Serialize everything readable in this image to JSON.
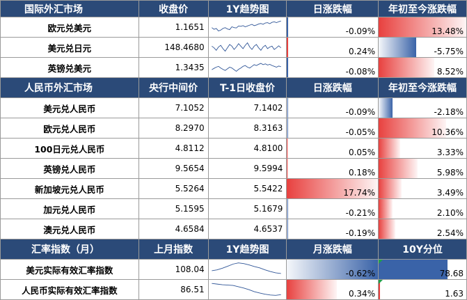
{
  "colors": {
    "header_bg": "#2b4a78",
    "pos": "#e8413f",
    "neg": "#3a63a8"
  },
  "section_fx": {
    "headers": [
      "国际外汇市场",
      "收盘价",
      "1Y趋势图",
      "日涨跌幅",
      "年初至今涨跌幅"
    ],
    "rows": [
      {
        "name": "欧元兑美元",
        "close": "1.1651",
        "daily": "-0.09%",
        "daily_v": -0.09,
        "ytd": "13.48%",
        "ytd_v": 13.48
      },
      {
        "name": "美元兑日元",
        "close": "148.4680",
        "daily": "0.24%",
        "daily_v": 0.24,
        "ytd": "-5.75%",
        "ytd_v": -5.75
      },
      {
        "name": "英镑兑美元",
        "close": "1.3435",
        "daily": "-0.08%",
        "daily_v": -0.08,
        "ytd": "8.52%",
        "ytd_v": 8.52
      }
    ]
  },
  "section_cny": {
    "headers": [
      "人民币外汇市场",
      "央行中间价",
      "T-1日收盘价",
      "日涨跌幅",
      "年初至今涨跌幅"
    ],
    "rows": [
      {
        "name": "美元兑人民币",
        "mid": "7.1052",
        "prev": "7.1402",
        "daily": "-0.09%",
        "daily_v": -0.09,
        "ytd": "-2.18%",
        "ytd_v": -2.18
      },
      {
        "name": "欧元兑人民币",
        "mid": "8.2970",
        "prev": "8.3163",
        "daily": "-0.05%",
        "daily_v": -0.05,
        "ytd": "10.36%",
        "ytd_v": 10.36
      },
      {
        "name": "100日元兑人民币",
        "mid": "4.8112",
        "prev": "4.8100",
        "daily": "0.05%",
        "daily_v": 0.05,
        "ytd": "3.33%",
        "ytd_v": 3.33
      },
      {
        "name": "英镑兑人民币",
        "mid": "9.5654",
        "prev": "9.5994",
        "daily": "0.18%",
        "daily_v": 0.18,
        "ytd": "5.98%",
        "ytd_v": 5.98
      },
      {
        "name": "新加坡元兑人民币",
        "mid": "5.5264",
        "prev": "5.5422",
        "daily": "17.74%",
        "daily_v": 17.74,
        "ytd": "3.49%",
        "ytd_v": 3.49
      },
      {
        "name": "加元兑人民币",
        "mid": "5.1595",
        "prev": "5.1679",
        "daily": "-0.21%",
        "daily_v": -0.21,
        "ytd": "2.10%",
        "ytd_v": 2.1
      },
      {
        "name": "澳元兑人民币",
        "mid": "4.6584",
        "prev": "4.6537",
        "daily": "-0.19%",
        "daily_v": -0.19,
        "ytd": "2.54%",
        "ytd_v": 2.54
      }
    ]
  },
  "section_idx": {
    "headers": [
      "汇率指数（月）",
      "上月指数",
      "1Y趋势图",
      "月涨跌幅",
      "10Y分位"
    ],
    "rows": [
      {
        "name": "美元实际有效汇率指数",
        "last": "108.04",
        "monthly": "-0.62%",
        "monthly_v": -0.62,
        "pct": "78.68",
        "pct_v": 78.68
      },
      {
        "name": "人民币实际有效汇率指数",
        "last": "86.51",
        "monthly": "0.34%",
        "monthly_v": 0.34,
        "pct": "1.63",
        "pct_v": 1.63
      }
    ]
  },
  "chart_data": {
    "type": "table",
    "bar_scales": {
      "daily_max_abs": 17.74,
      "ytd_max_abs": 13.48,
      "monthly_max_abs": 0.62,
      "pct_max": 100
    },
    "sparklines": {
      "fx": [
        [
          0.5,
          0.4,
          0.45,
          0.3,
          0.35,
          0.45,
          0.5,
          0.42,
          0.38,
          0.55,
          0.5,
          0.48,
          0.6,
          0.58,
          0.62,
          0.55,
          0.6,
          0.65,
          0.7,
          0.62,
          0.66,
          0.72,
          0.75,
          0.7,
          0.78,
          0.8,
          0.74,
          0.82,
          0.85,
          0.8,
          0.86,
          0.9
        ],
        [
          0.6,
          0.5,
          0.35,
          0.55,
          0.65,
          0.45,
          0.3,
          0.5,
          0.7,
          0.6,
          0.4,
          0.55,
          0.75,
          0.6,
          0.45,
          0.65,
          0.8,
          0.55,
          0.4,
          0.6,
          0.7,
          0.5,
          0.35,
          0.55,
          0.65,
          0.45,
          0.55,
          0.6,
          0.4,
          0.5,
          0.62,
          0.5
        ],
        [
          0.4,
          0.48,
          0.55,
          0.6,
          0.5,
          0.42,
          0.35,
          0.45,
          0.55,
          0.5,
          0.4,
          0.3,
          0.42,
          0.5,
          0.6,
          0.65,
          0.55,
          0.5,
          0.6,
          0.7,
          0.65,
          0.72,
          0.78,
          0.7,
          0.75,
          0.68,
          0.72,
          0.65,
          0.6,
          0.55,
          0.62,
          0.58
        ]
      ],
      "idx": [
        [
          0.45,
          0.5,
          0.6,
          0.72,
          0.85,
          0.92,
          0.88,
          0.8,
          0.7,
          0.62,
          0.5,
          0.4,
          0.32,
          0.28
        ],
        [
          0.9,
          0.86,
          0.82,
          0.8,
          0.78,
          0.7,
          0.62,
          0.52,
          0.4,
          0.32,
          0.25,
          0.2,
          0.18,
          0.22
        ]
      ]
    }
  }
}
